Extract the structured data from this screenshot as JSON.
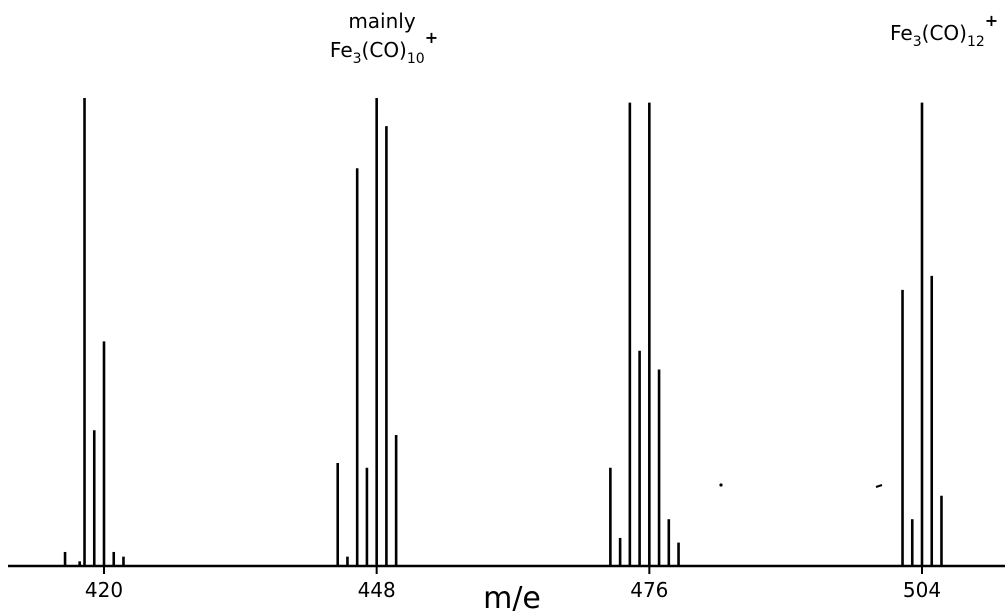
{
  "chart_data": {
    "type": "bar",
    "title": "",
    "xlabel": "m/e",
    "ylabel": "",
    "grid": false,
    "xlim": [
      410,
      513
    ],
    "ylim": [
      0,
      100
    ],
    "xticks": [
      "420",
      "448",
      "476",
      "504"
    ],
    "annotations": [
      {
        "id": "fe3co10",
        "text_top": "mainly",
        "formula": "Fe",
        "sub1": "3",
        "mid": "(CO)",
        "sub2": "10",
        "charge": "+",
        "x": 448
      },
      {
        "id": "fe3co12",
        "formula": "Fe",
        "sub1": "3",
        "mid": "(CO)",
        "sub2": "12",
        "charge": "+",
        "x": 504
      }
    ],
    "series": [
      {
        "values": [
          {
            "x": 416,
            "y": 3
          },
          {
            "x": 417.5,
            "y": 1
          },
          {
            "x": 418,
            "y": 100
          },
          {
            "x": 419,
            "y": 29
          },
          {
            "x": 420,
            "y": 48
          },
          {
            "x": 421,
            "y": 3
          },
          {
            "x": 422,
            "y": 2
          },
          {
            "x": 444,
            "y": 22
          },
          {
            "x": 445,
            "y": 2
          },
          {
            "x": 446,
            "y": 85
          },
          {
            "x": 447,
            "y": 21
          },
          {
            "x": 448,
            "y": 100
          },
          {
            "x": 449,
            "y": 94
          },
          {
            "x": 450,
            "y": 28
          },
          {
            "x": 472,
            "y": 21
          },
          {
            "x": 473,
            "y": 6
          },
          {
            "x": 474,
            "y": 99
          },
          {
            "x": 475,
            "y": 46
          },
          {
            "x": 476,
            "y": 99
          },
          {
            "x": 477,
            "y": 42
          },
          {
            "x": 478,
            "y": 10
          },
          {
            "x": 479,
            "y": 5
          },
          {
            "x": 502,
            "y": 59
          },
          {
            "x": 503,
            "y": 10
          },
          {
            "x": 504,
            "y": 99
          },
          {
            "x": 505,
            "y": 62
          },
          {
            "x": 506,
            "y": 15
          }
        ]
      }
    ]
  }
}
